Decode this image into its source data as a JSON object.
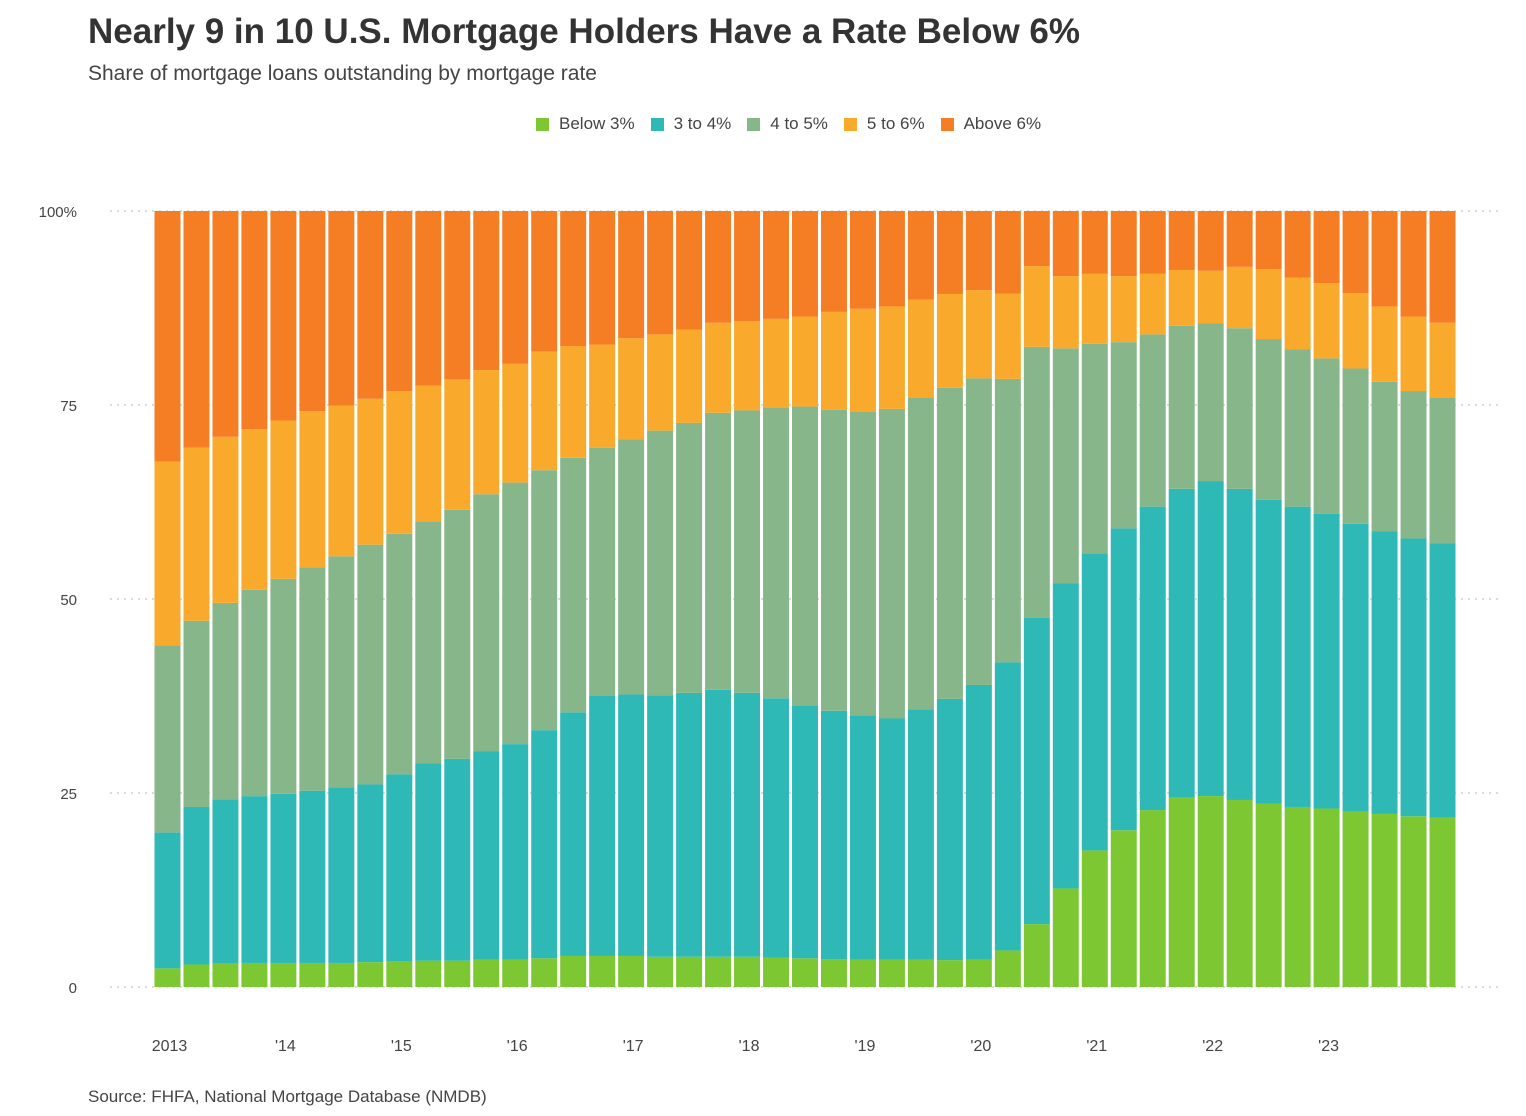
{
  "title": "Nearly 9 in 10 U.S. Mortgage Holders Have a Rate Below 6%",
  "subtitle": "Share of mortgage loans outstanding by mortgage rate",
  "source": "Source: FHFA, National Mortgage Database (NMDB)",
  "colors": {
    "below_3": "#7dc832",
    "3_to_4": "#2eb9b7",
    "4_to_5": "#86b68a",
    "5_to_6": "#f9aa2d",
    "above_6": "#f57d24",
    "grid": "#cfcfcf"
  },
  "legend": [
    {
      "label": "Below 3%",
      "color": "#7dc832"
    },
    {
      "label": "3 to 4%",
      "color": "#2eb9b7"
    },
    {
      "label": "4 to 5%",
      "color": "#86b68a"
    },
    {
      "label": "5 to 6%",
      "color": "#f9aa2d"
    },
    {
      "label": "Above 6%",
      "color": "#f57d24"
    }
  ],
  "chart_data": {
    "type": "bar",
    "stacked": true,
    "title": "Nearly 9 in 10 U.S. Mortgage Holders Have a Rate Below 6%",
    "subtitle": "Share of mortgage loans outstanding by mortgage rate",
    "period": "quarterly, 2013 Q1 – 2024 Q1",
    "xtick_labels": [
      {
        "label": "2013",
        "bar_index": 0
      },
      {
        "label": "'14",
        "bar_index": 4
      },
      {
        "label": "'15",
        "bar_index": 8
      },
      {
        "label": "'16",
        "bar_index": 12
      },
      {
        "label": "'17",
        "bar_index": 16
      },
      {
        "label": "'18",
        "bar_index": 20
      },
      {
        "label": "'19",
        "bar_index": 24
      },
      {
        "label": "'20",
        "bar_index": 28
      },
      {
        "label": "'21",
        "bar_index": 32
      },
      {
        "label": "'22",
        "bar_index": 36
      },
      {
        "label": "'23",
        "bar_index": 40
      }
    ],
    "yticks": [
      "0",
      "25",
      "50",
      "75",
      "100%"
    ],
    "ylim": [
      0,
      100
    ],
    "grid": "horizontal dotted",
    "legend_position": "top",
    "series": [
      {
        "name": "Below 3%",
        "color": "#7dc832",
        "values": [
          2.4,
          2.9,
          3.0,
          3.1,
          3.1,
          3.1,
          3.1,
          3.2,
          3.3,
          3.4,
          3.4,
          3.5,
          3.5,
          3.7,
          4.0,
          4.0,
          4.0,
          3.9,
          3.9,
          3.9,
          3.9,
          3.8,
          3.7,
          3.6,
          3.5,
          3.5,
          3.5,
          3.5,
          3.6,
          4.9,
          8.1,
          12.7,
          17.6,
          20.2,
          22.8,
          24.4,
          24.6,
          24.1,
          23.6,
          23.2,
          23.0,
          22.6,
          22.3,
          22.0,
          21.8
        ]
      },
      {
        "name": "3 to 4%",
        "color": "#2eb9b7",
        "values": [
          17.5,
          20.3,
          21.2,
          21.5,
          21.8,
          22.2,
          22.6,
          22.9,
          24.1,
          25.4,
          26.0,
          26.9,
          27.8,
          29.4,
          31.4,
          33.5,
          33.7,
          33.7,
          34.0,
          34.4,
          34.0,
          33.4,
          32.6,
          32.0,
          31.5,
          31.1,
          32.3,
          34.0,
          36.1,
          38.6,
          39.5,
          39.3,
          38.3,
          38.9,
          39.1,
          39.8,
          40.6,
          40.1,
          39.2,
          38.7,
          38.0,
          37.1,
          36.4,
          35.8,
          35.4
        ]
      },
      {
        "name": "4 to 5%",
        "color": "#86b68a",
        "values": [
          24.1,
          24.0,
          25.3,
          26.6,
          27.7,
          28.8,
          29.8,
          30.9,
          31.0,
          31.2,
          32.1,
          33.1,
          33.7,
          33.5,
          32.8,
          32.0,
          32.9,
          34.1,
          34.8,
          35.7,
          36.4,
          37.5,
          38.5,
          38.8,
          39.1,
          39.9,
          40.2,
          40.5,
          40.3,
          38.0,
          34.9,
          30.3,
          27.0,
          24.0,
          22.2,
          21.0,
          20.3,
          20.7,
          20.7,
          20.3,
          20.0,
          20.0,
          19.3,
          19.0,
          18.8
        ]
      },
      {
        "name": "5 to 6%",
        "color": "#f9aa2d",
        "values": [
          23.7,
          22.3,
          21.4,
          20.7,
          20.4,
          20.1,
          19.4,
          18.8,
          18.4,
          17.5,
          16.8,
          16.0,
          15.3,
          15.3,
          14.4,
          13.3,
          13.0,
          12.4,
          12.0,
          11.6,
          11.5,
          11.4,
          11.6,
          12.6,
          13.3,
          13.2,
          12.6,
          12.2,
          11.6,
          11.4,
          10.4,
          9.3,
          9.0,
          8.5,
          7.8,
          7.2,
          6.8,
          7.9,
          9.0,
          9.2,
          9.7,
          9.7,
          9.7,
          9.6,
          9.6
        ]
      },
      {
        "name": "Above 6%",
        "color": "#f57d24",
        "values": [
          32.3,
          30.5,
          29.1,
          28.1,
          27.0,
          25.8,
          25.1,
          24.2,
          23.2,
          22.5,
          21.7,
          20.5,
          19.7,
          18.1,
          17.4,
          17.2,
          16.4,
          15.9,
          15.3,
          14.4,
          14.2,
          13.9,
          13.6,
          13.0,
          12.6,
          12.3,
          11.4,
          10.8,
          10.4,
          11.1,
          7.1,
          8.4,
          8.1,
          8.4,
          8.1,
          7.6,
          7.7,
          7.2,
          7.5,
          8.6,
          9.3,
          10.6,
          12.3,
          13.6,
          14.4
        ]
      }
    ]
  }
}
